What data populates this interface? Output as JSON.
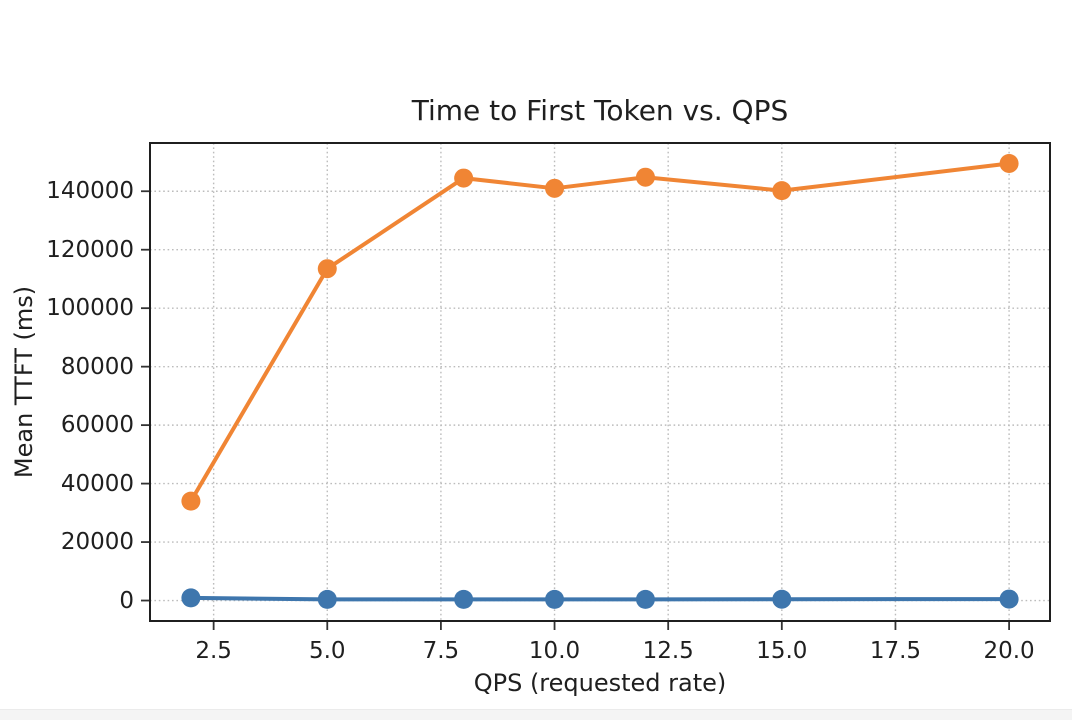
{
  "page": {
    "background": "#ffffff",
    "bottom_strip_color": "#f4f4f4"
  },
  "chart_data": {
    "type": "line",
    "title": "Time to First Token vs. QPS",
    "xlabel": "QPS (requested rate)",
    "ylabel": "Mean TTFT (ms)",
    "x": [
      2,
      5,
      8,
      10,
      12,
      15,
      20
    ],
    "series": [
      {
        "id": "blue-series",
        "color": "#3e76ad",
        "values": [
          900,
          400,
          400,
          400,
          400,
          450,
          500
        ]
      },
      {
        "id": "orange-series",
        "color": "#f08534",
        "values": [
          34000,
          113500,
          144500,
          141000,
          144800,
          140200,
          149500
        ]
      }
    ],
    "xticks": [
      2.5,
      5.0,
      7.5,
      10.0,
      12.5,
      15.0,
      17.5,
      20.0
    ],
    "xtick_labels": [
      "2.5",
      "5.0",
      "7.5",
      "10.0",
      "12.5",
      "15.0",
      "17.5",
      "20.0"
    ],
    "yticks": [
      0,
      20000,
      40000,
      60000,
      80000,
      100000,
      120000,
      140000
    ],
    "ytick_labels": [
      "0",
      "20000",
      "40000",
      "60000",
      "80000",
      "100000",
      "120000",
      "140000"
    ],
    "xlim": [
      1.1,
      20.9
    ],
    "ylim": [
      -7000,
      156500
    ],
    "grid": "dotted",
    "legend": "none",
    "grid_color": "#bcbcbc",
    "axis_color": "#1f1f1f",
    "tick_color": "#333333"
  }
}
